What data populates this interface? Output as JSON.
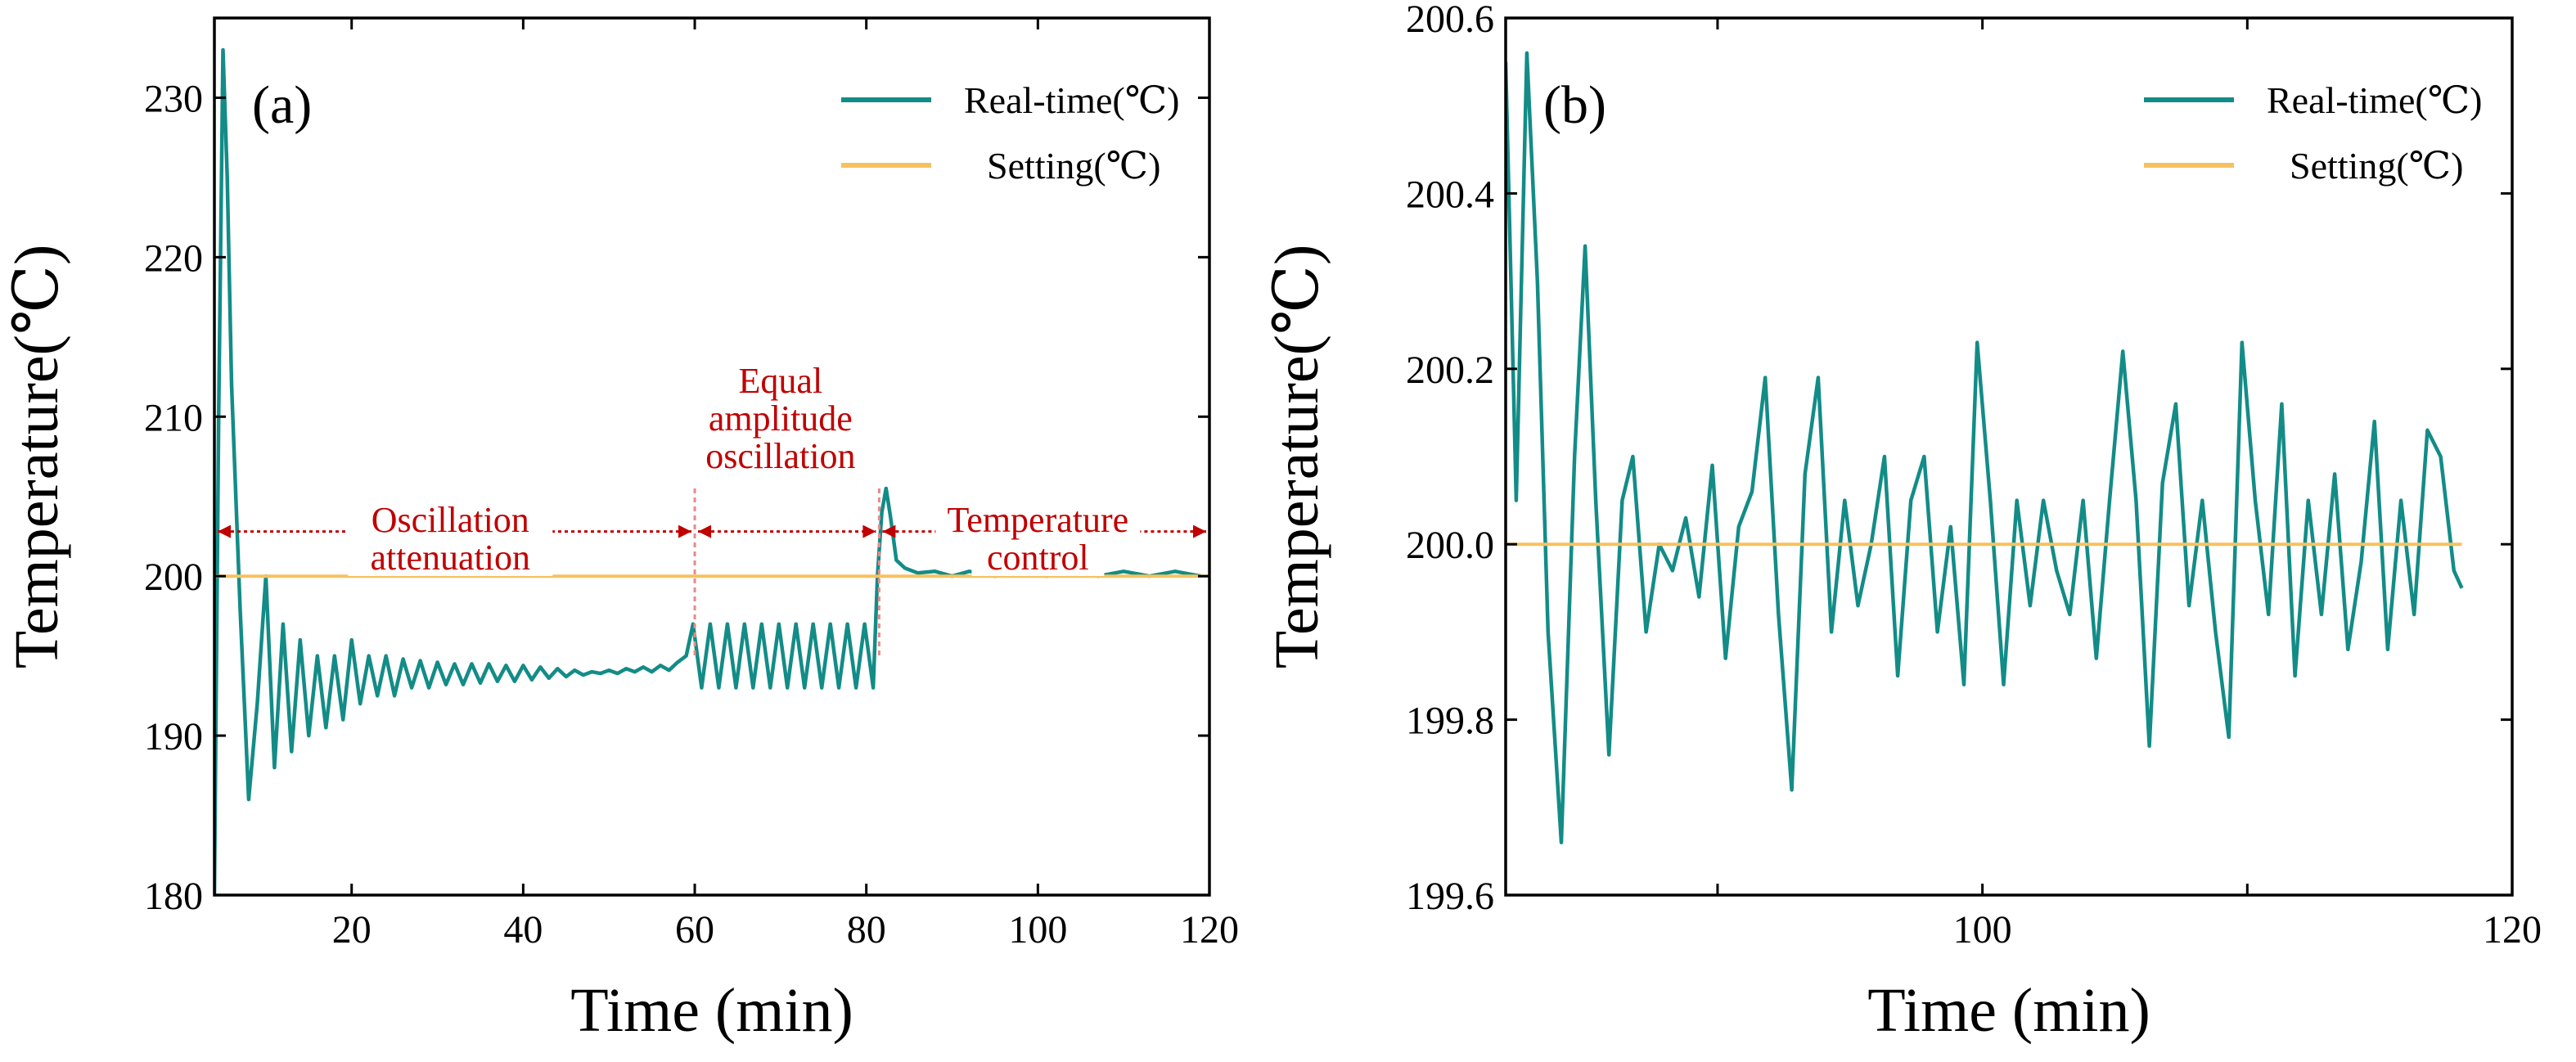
{
  "colors": {
    "realtime": "#138c87",
    "setting": "#f5c260",
    "annotation": "#c00000",
    "axis": "#000000"
  },
  "chart_data": [
    {
      "id": "a",
      "type": "line",
      "panel_label": "(a)",
      "xlabel": "Time (min)",
      "ylabel": "Temperature(℃)",
      "xlim": [
        4,
        120
      ],
      "ylim": [
        180,
        235
      ],
      "xticks": [
        20,
        40,
        60,
        80,
        100,
        120
      ],
      "yticks": [
        180,
        190,
        200,
        210,
        220,
        230
      ],
      "legend": {
        "position": "top-right",
        "entries": [
          "Real-time(℃)",
          "Setting(℃)"
        ]
      },
      "series": [
        {
          "name": "Real-time(℃)",
          "key": "realtime",
          "x": [
            4,
            4.5,
            5,
            5.5,
            6,
            7,
            8,
            9,
            10,
            11,
            12,
            13,
            14,
            15,
            16,
            17,
            18,
            19,
            20,
            21,
            22,
            23,
            24,
            25,
            26,
            27,
            28,
            29,
            30,
            31,
            32,
            33,
            34,
            35,
            36,
            37,
            38,
            39,
            40,
            41,
            42,
            43,
            44,
            45,
            46,
            47,
            48,
            49,
            50,
            51,
            52,
            53,
            54,
            55,
            56,
            57,
            58,
            59,
            59.8,
            60.8,
            61.8,
            62.8,
            63.8,
            64.8,
            65.8,
            66.8,
            67.8,
            68.8,
            69.8,
            70.8,
            71.8,
            72.8,
            73.8,
            74.8,
            75.8,
            76.8,
            77.8,
            78.8,
            79.8,
            80.8,
            81.3,
            81.8,
            82.3,
            82.8,
            83.5,
            84.5,
            86,
            88,
            90,
            92,
            95,
            98,
            101,
            104,
            107,
            110,
            113,
            116,
            119
          ],
          "values": [
            180,
            210,
            233,
            225,
            212,
            198,
            186,
            192,
            200,
            188,
            197,
            189,
            196,
            190,
            195,
            190.5,
            195,
            191,
            196,
            192,
            195,
            192.5,
            195,
            192.5,
            194.8,
            193,
            194.7,
            193,
            194.6,
            193.2,
            194.5,
            193.2,
            194.5,
            193.3,
            194.5,
            193.4,
            194.4,
            193.4,
            194.4,
            193.5,
            194.3,
            193.6,
            194.2,
            193.7,
            194.1,
            193.8,
            194,
            193.9,
            194.1,
            193.9,
            194.2,
            194,
            194.3,
            194,
            194.4,
            194.1,
            194.6,
            195,
            197,
            193,
            197,
            193,
            197,
            193,
            197,
            193,
            197,
            193,
            197,
            193,
            197,
            193,
            197,
            193,
            197,
            193,
            197,
            193,
            197,
            193,
            200,
            204,
            205.5,
            203.8,
            201,
            200.5,
            200.2,
            200.3,
            200,
            200.3,
            200,
            200.3,
            200,
            200.3,
            200,
            200.3,
            200,
            200.3,
            200
          ]
        },
        {
          "name": "Setting(℃)",
          "key": "setting",
          "x": [
            4,
            120
          ],
          "values": [
            200,
            200
          ]
        }
      ],
      "annotations": [
        {
          "lines": [
            "Oscillation",
            "attenuation"
          ],
          "x": 31.5,
          "y": 203.5,
          "arrow_from": 4,
          "arrow_to": 60
        },
        {
          "lines": [
            "Equal",
            "amplitude",
            "oscillation"
          ],
          "x": 70,
          "y": 207.5,
          "arrow_from": 60,
          "arrow_to": 81.5
        },
        {
          "lines": [
            "Temperature",
            "control"
          ],
          "x": 100,
          "y": 203.5,
          "arrow_from": 81.5,
          "arrow_to": 120
        }
      ],
      "dividers": [
        60,
        81.5
      ]
    },
    {
      "id": "b",
      "type": "line",
      "panel_label": "(b)",
      "xlabel": "Time (min)",
      "ylabel": "Temperature(℃)",
      "xlim": [
        82,
        120
      ],
      "ylim": [
        199.6,
        200.6
      ],
      "xticks": [
        100,
        120
      ],
      "xticks_minor": [
        90,
        110
      ],
      "yticks": [
        199.6,
        199.8,
        200.0,
        200.2,
        200.4,
        200.6
      ],
      "legend": {
        "position": "top-right",
        "entries": [
          "Real-time(℃)",
          "Setting(℃)"
        ]
      },
      "series": [
        {
          "name": "Real-time(℃)",
          "key": "realtime",
          "x": [
            82,
            82.4,
            82.8,
            83.2,
            83.6,
            84.1,
            84.6,
            85.0,
            85.4,
            85.9,
            86.4,
            86.8,
            87.3,
            87.8,
            88.3,
            88.8,
            89.3,
            89.8,
            90.3,
            90.8,
            91.3,
            91.8,
            92.3,
            92.8,
            93.3,
            93.8,
            94.3,
            94.8,
            95.3,
            95.8,
            96.3,
            96.8,
            97.3,
            97.8,
            98.3,
            98.8,
            99.3,
            99.8,
            100.3,
            100.8,
            101.3,
            101.8,
            102.3,
            102.8,
            103.3,
            103.8,
            104.3,
            104.8,
            105.3,
            105.8,
            106.3,
            106.8,
            107.3,
            107.8,
            108.3,
            108.8,
            109.3,
            109.8,
            110.3,
            110.8,
            111.3,
            111.8,
            112.3,
            112.8,
            113.3,
            113.8,
            114.3,
            114.8,
            115.3,
            115.8,
            116.3,
            116.8,
            117.3,
            117.8,
            118.1
          ],
          "values": [
            200.55,
            200.05,
            200.56,
            200.3,
            199.9,
            199.66,
            200.1,
            200.34,
            200.05,
            199.76,
            200.05,
            200.1,
            199.9,
            200.0,
            199.97,
            200.03,
            199.94,
            200.09,
            199.87,
            200.02,
            200.06,
            200.19,
            199.92,
            199.72,
            200.08,
            200.19,
            199.9,
            200.05,
            199.93,
            200.0,
            200.1,
            199.85,
            200.05,
            200.1,
            199.9,
            200.02,
            199.84,
            200.23,
            200.05,
            199.84,
            200.05,
            199.93,
            200.05,
            199.97,
            199.92,
            200.05,
            199.87,
            200.05,
            200.22,
            200.05,
            199.77,
            200.07,
            200.16,
            199.93,
            200.05,
            199.9,
            199.78,
            200.23,
            200.05,
            199.92,
            200.16,
            199.85,
            200.05,
            199.92,
            200.08,
            199.88,
            199.98,
            200.14,
            199.88,
            200.05,
            199.92,
            200.13,
            200.1,
            199.97,
            199.95
          ]
        },
        {
          "name": "Setting(℃)",
          "key": "setting",
          "x": [
            82,
            118.1
          ],
          "values": [
            200,
            200
          ]
        }
      ]
    }
  ]
}
